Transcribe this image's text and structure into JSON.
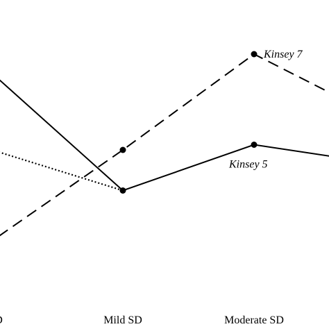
{
  "chart_data": {
    "type": "line",
    "title": "",
    "xlabel": "",
    "ylabel": "",
    "categories": [
      "D",
      "Mild SD",
      "Moderate SD",
      ""
    ],
    "grid": false,
    "legend": "none",
    "series": [
      {
        "name": "Kinsey 5",
        "style": "solid",
        "color": "#000000",
        "values": [
          78,
          24.5,
          46.5,
          37
        ]
      },
      {
        "name": "Kinsey 7",
        "style": "dashed",
        "color": "#000000",
        "values": [
          2.5,
          44,
          90,
          58
        ]
      },
      {
        "name": "",
        "style": "dotted",
        "color": "#000000",
        "values": [
          43,
          24.5,
          null,
          null
        ]
      }
    ]
  }
}
